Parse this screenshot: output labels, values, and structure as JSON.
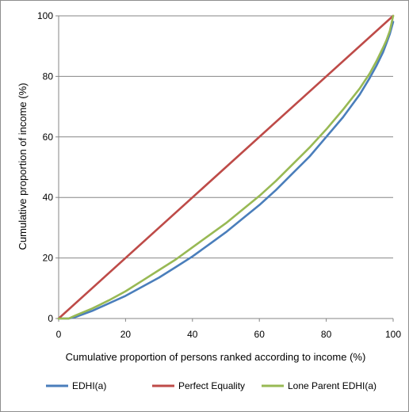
{
  "chart_data": {
    "type": "line",
    "title": "",
    "xlabel": "Cumulative proportion of persons ranked according to income (%)",
    "ylabel": "Cumulative proportion of income (%)",
    "xlim": [
      0,
      100
    ],
    "ylim": [
      0,
      100
    ],
    "x_ticks": [
      0,
      20,
      40,
      60,
      80,
      100
    ],
    "y_ticks": [
      0,
      20,
      40,
      60,
      80,
      100
    ],
    "grid": "horizontal",
    "legend_position": "bottom",
    "series": [
      {
        "name": "EDHI(a)",
        "color": "#4a7ebb",
        "x": [
          0,
          3,
          5,
          10,
          15,
          20,
          25,
          30,
          35,
          40,
          45,
          50,
          55,
          60,
          65,
          70,
          75,
          80,
          85,
          90,
          93,
          95,
          97,
          98,
          99,
          100
        ],
        "y": [
          0,
          0,
          0.5,
          2.5,
          5,
          7.5,
          10.5,
          13.5,
          17,
          20.5,
          24.5,
          28.5,
          33,
          37.5,
          42.5,
          48,
          53.5,
          60,
          66.5,
          74,
          79.5,
          83.5,
          88,
          91,
          94,
          98
        ]
      },
      {
        "name": "Perfect Equality",
        "color": "#be4b48",
        "x": [
          0,
          100
        ],
        "y": [
          0,
          100
        ]
      },
      {
        "name": "Lone Parent EDHI(a)",
        "color": "#98b954",
        "x": [
          0,
          3,
          5,
          10,
          15,
          20,
          25,
          30,
          35,
          40,
          45,
          50,
          55,
          60,
          65,
          70,
          75,
          80,
          85,
          90,
          93,
          95,
          97,
          98,
          99,
          100
        ],
        "y": [
          0,
          0,
          1,
          3.3,
          6,
          9,
          12.5,
          16,
          19.5,
          23.5,
          27.5,
          31.5,
          36,
          40.5,
          45.5,
          51,
          56.5,
          62.5,
          69,
          76,
          81,
          85,
          89.5,
          92,
          95,
          100
        ]
      }
    ]
  }
}
